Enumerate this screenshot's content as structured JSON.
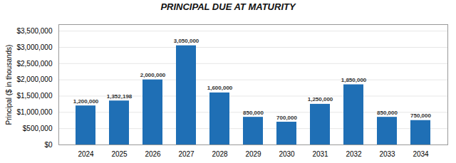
{
  "chart_data": {
    "type": "bar",
    "title": "PRINCIPAL DUE AT MATURITY",
    "categories": [
      "2024",
      "2025",
      "2026",
      "2027",
      "2028",
      "2029",
      "2030",
      "2031",
      "2032",
      "2033",
      "2034"
    ],
    "values": [
      1200000,
      1352198,
      2000000,
      3050000,
      1600000,
      850000,
      700000,
      1250000,
      1850000,
      850000,
      750000
    ],
    "value_labels": [
      "1,200,000",
      "1,352,198",
      "2,000,000",
      "3,050,000",
      "1,600,000",
      "850,000",
      "700,000",
      "1,250,000",
      "1,850,000",
      "850,000",
      "750,000"
    ],
    "data_labels": true,
    "color": "#1F6FB5",
    "ylabel": "Principal ($ in thousands)",
    "ylim": [
      0,
      3700000
    ],
    "yticks": [
      {
        "value": 0,
        "label": "$0"
      },
      {
        "value": 500000,
        "label": "$500,000"
      },
      {
        "value": 1000000,
        "label": "$1,000,000"
      },
      {
        "value": 1500000,
        "label": "$1,500,000"
      },
      {
        "value": 2000000,
        "label": "$2,000,000"
      },
      {
        "value": 2500000,
        "label": "$2,500,000"
      },
      {
        "value": 3000000,
        "label": "$3,000,000"
      },
      {
        "value": 3500000,
        "label": "$3,500,000"
      }
    ],
    "grid": true
  }
}
